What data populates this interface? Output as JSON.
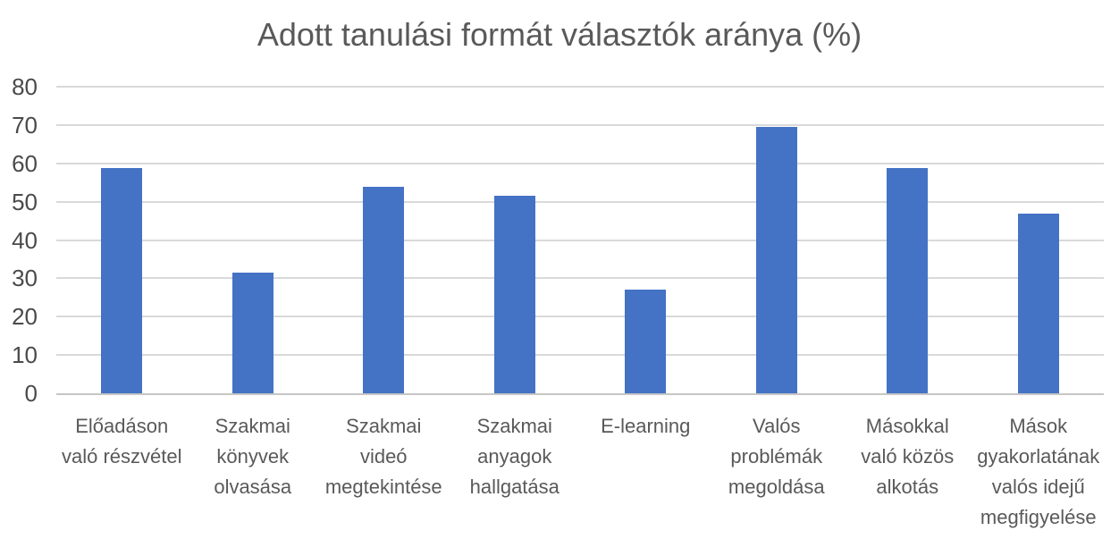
{
  "chart_data": {
    "type": "bar",
    "title": "Adott tanulási formát választók aránya (%)",
    "categories": [
      "Előadáson való részvétel",
      "Szakmai könyvek olvasása",
      "Szakmai videó megtekintése",
      "Szakmai anyagok hallgatása",
      "E-learning",
      "Valós problémák megoldása",
      "Másokkal való közös alkotás",
      "Mások gyakorlatának valós idejű megfigyelése"
    ],
    "category_line_breaks": [
      [
        "Előadáson",
        "való részvétel"
      ],
      [
        "Szakmai",
        "könyvek",
        "olvasása"
      ],
      [
        "Szakmai",
        "videó",
        "megtekintése"
      ],
      [
        "Szakmai",
        "anyagok",
        "hallgatása"
      ],
      [
        "E-learning"
      ],
      [
        "Valós",
        "problémák",
        "megoldása"
      ],
      [
        "Másokkal",
        "való közös",
        "alkotás"
      ],
      [
        "Mások",
        "gyakorlatának",
        "valós idejű",
        "megfigyelése"
      ]
    ],
    "values": [
      58.8,
      31.6,
      53.8,
      51.6,
      27.1,
      69.4,
      58.8,
      46.9
    ],
    "xlabel": "",
    "ylabel": "",
    "ylim": [
      0,
      80
    ],
    "yticks": [
      0,
      10,
      20,
      30,
      40,
      50,
      60,
      70,
      80
    ],
    "grid": "horizontal",
    "legend": "none",
    "colors": {
      "bar": "#4472c4",
      "gridline": "#d9d9d9",
      "axis_line": "#c6c6c6",
      "title_text": "#595959",
      "tick_text": "#4a4a4a",
      "label_text": "#595959"
    }
  }
}
